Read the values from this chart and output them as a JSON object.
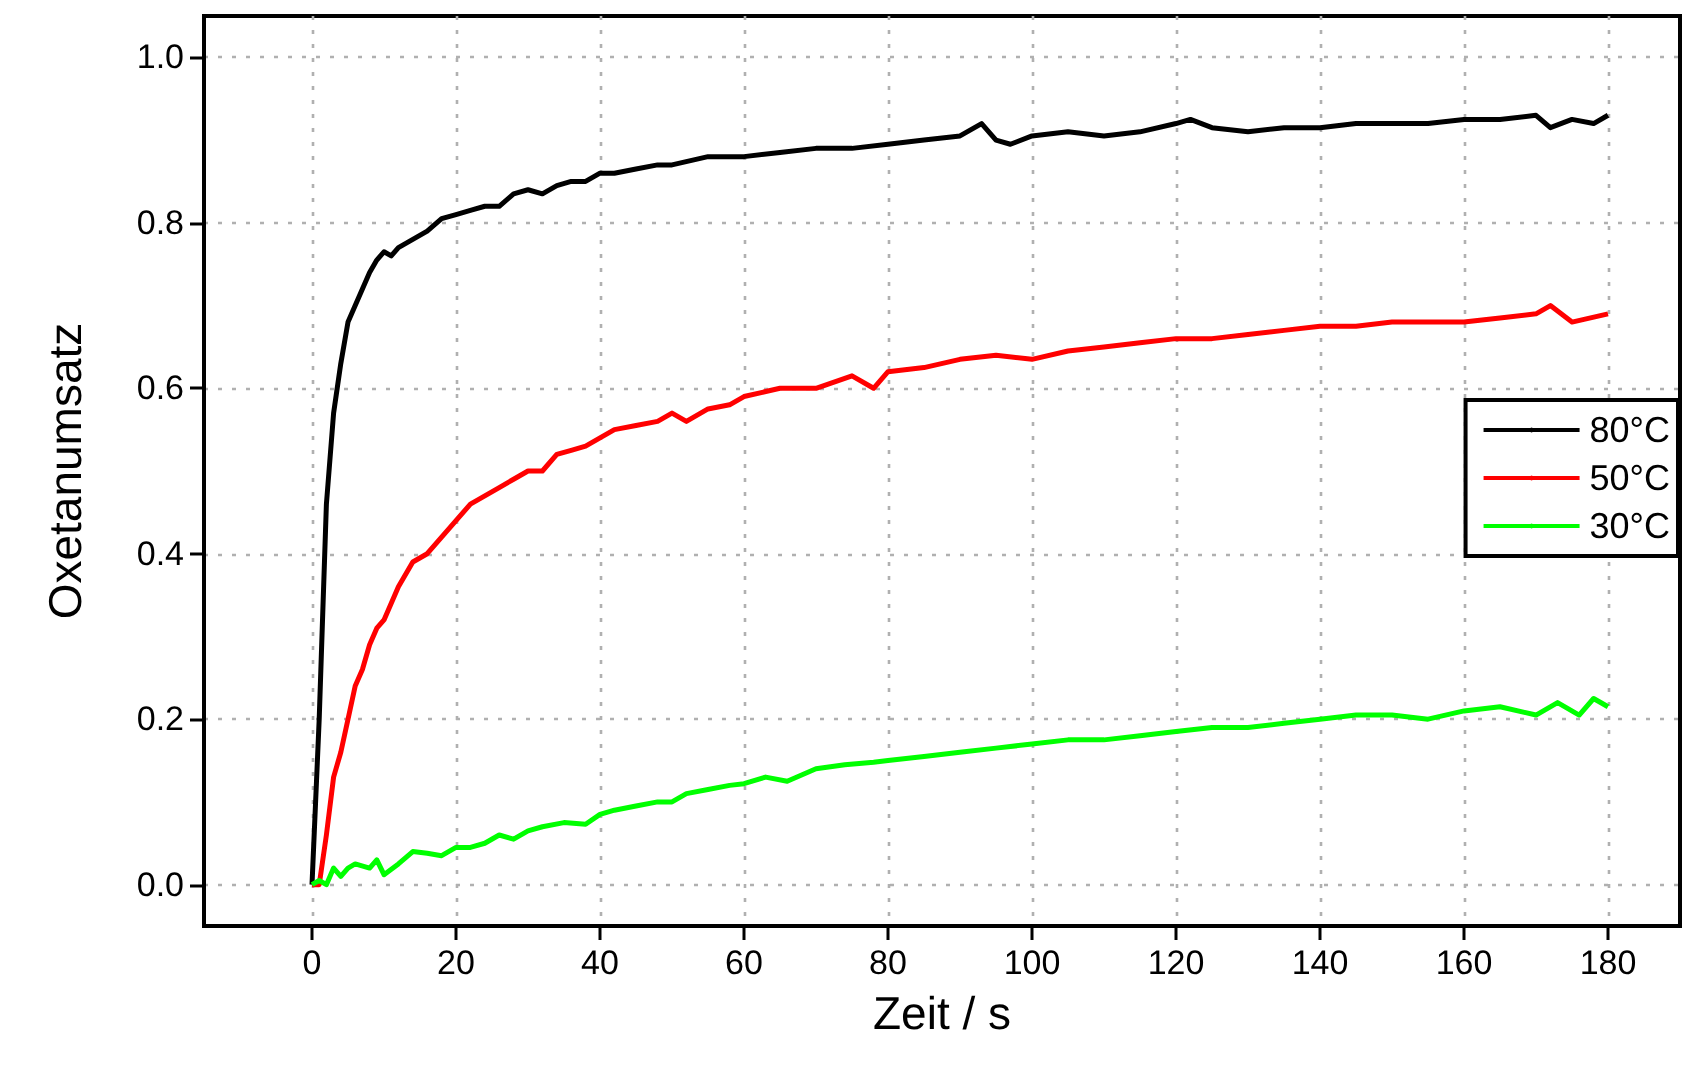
{
  "chart_data": {
    "type": "line",
    "xlabel": "Zeit / s",
    "ylabel": "Oxetanumsatz",
    "xlim": [
      -15,
      190
    ],
    "xticks": [
      0,
      20,
      40,
      60,
      80,
      100,
      120,
      140,
      160,
      180
    ],
    "ylim": [
      -0.05,
      1.05
    ],
    "yticks": [
      {
        "value": 0,
        "label": "0.0"
      },
      {
        "value": 0.2,
        "label": "0.2"
      },
      {
        "value": 0.4,
        "label": "0.4"
      },
      {
        "value": 0.6,
        "label": "0.6"
      },
      {
        "value": 0.8,
        "label": "0.8"
      },
      {
        "value": 1,
        "label": "1.0"
      }
    ],
    "grid": true,
    "legend": "right",
    "marker": "none",
    "line_style": "solid",
    "series": [
      {
        "name": "80°C",
        "color": "#000000",
        "x": [
          0,
          1,
          2,
          3,
          4,
          5,
          6,
          7,
          8,
          9,
          10,
          11,
          12,
          14,
          16,
          18,
          20,
          22,
          24,
          26,
          28,
          30,
          32,
          34,
          36,
          38,
          40,
          42,
          45,
          48,
          50,
          55,
          60,
          65,
          70,
          75,
          80,
          85,
          90,
          93,
          95,
          97,
          100,
          105,
          110,
          115,
          120,
          122,
          125,
          130,
          135,
          140,
          145,
          150,
          155,
          160,
          165,
          170,
          172,
          175,
          178,
          180
        ],
        "values": [
          0,
          0.2,
          0.46,
          0.57,
          0.63,
          0.68,
          0.7,
          0.72,
          0.74,
          0.755,
          0.765,
          0.76,
          0.77,
          0.78,
          0.79,
          0.805,
          0.81,
          0.815,
          0.82,
          0.82,
          0.835,
          0.84,
          0.835,
          0.845,
          0.85,
          0.85,
          0.86,
          0.86,
          0.865,
          0.87,
          0.87,
          0.88,
          0.88,
          0.885,
          0.89,
          0.89,
          0.895,
          0.9,
          0.905,
          0.92,
          0.9,
          0.895,
          0.905,
          0.91,
          0.905,
          0.91,
          0.92,
          0.925,
          0.915,
          0.91,
          0.915,
          0.915,
          0.92,
          0.92,
          0.92,
          0.925,
          0.925,
          0.93,
          0.915,
          0.925,
          0.92,
          0.93
        ]
      },
      {
        "name": "50°C",
        "color": "#ff0000",
        "x": [
          0,
          1,
          2,
          3,
          4,
          5,
          6,
          7,
          8,
          9,
          10,
          12,
          14,
          16,
          18,
          20,
          22,
          24,
          26,
          28,
          30,
          32,
          34,
          36,
          38,
          40,
          42,
          45,
          48,
          50,
          52,
          55,
          58,
          60,
          65,
          70,
          75,
          78,
          80,
          85,
          90,
          95,
          100,
          105,
          110,
          115,
          120,
          125,
          130,
          135,
          140,
          145,
          150,
          155,
          160,
          165,
          170,
          172,
          175,
          180
        ],
        "values": [
          0,
          0,
          0.06,
          0.13,
          0.16,
          0.2,
          0.24,
          0.26,
          0.29,
          0.31,
          0.32,
          0.36,
          0.39,
          0.4,
          0.42,
          0.44,
          0.46,
          0.47,
          0.48,
          0.49,
          0.5,
          0.5,
          0.52,
          0.525,
          0.53,
          0.54,
          0.55,
          0.555,
          0.56,
          0.57,
          0.56,
          0.575,
          0.58,
          0.59,
          0.6,
          0.6,
          0.615,
          0.6,
          0.62,
          0.625,
          0.635,
          0.64,
          0.635,
          0.645,
          0.65,
          0.655,
          0.66,
          0.66,
          0.665,
          0.67,
          0.675,
          0.675,
          0.68,
          0.68,
          0.68,
          0.685,
          0.69,
          0.7,
          0.68,
          0.69
        ]
      },
      {
        "name": "30°C",
        "color": "#00ff00",
        "x": [
          0,
          1,
          2,
          3,
          4,
          5,
          6,
          8,
          9,
          10,
          12,
          14,
          16,
          18,
          20,
          22,
          24,
          26,
          28,
          30,
          32,
          35,
          38,
          40,
          42,
          45,
          48,
          50,
          52,
          55,
          58,
          60,
          63,
          66,
          70,
          74,
          78,
          80,
          85,
          90,
          95,
          100,
          105,
          110,
          115,
          120,
          125,
          130,
          135,
          140,
          145,
          150,
          155,
          160,
          165,
          170,
          173,
          176,
          178,
          180
        ],
        "values": [
          0,
          0.005,
          0,
          0.02,
          0.01,
          0.02,
          0.025,
          0.02,
          0.03,
          0.012,
          0.025,
          0.04,
          0.038,
          0.035,
          0.045,
          0.045,
          0.05,
          0.06,
          0.055,
          0.065,
          0.07,
          0.075,
          0.073,
          0.085,
          0.09,
          0.095,
          0.1,
          0.1,
          0.11,
          0.115,
          0.12,
          0.122,
          0.13,
          0.125,
          0.14,
          0.145,
          0.148,
          0.15,
          0.155,
          0.16,
          0.165,
          0.17,
          0.175,
          0.175,
          0.18,
          0.185,
          0.19,
          0.19,
          0.195,
          0.2,
          0.205,
          0.205,
          0.2,
          0.21,
          0.215,
          0.205,
          0.22,
          0.205,
          0.225,
          0.215
        ]
      }
    ]
  }
}
